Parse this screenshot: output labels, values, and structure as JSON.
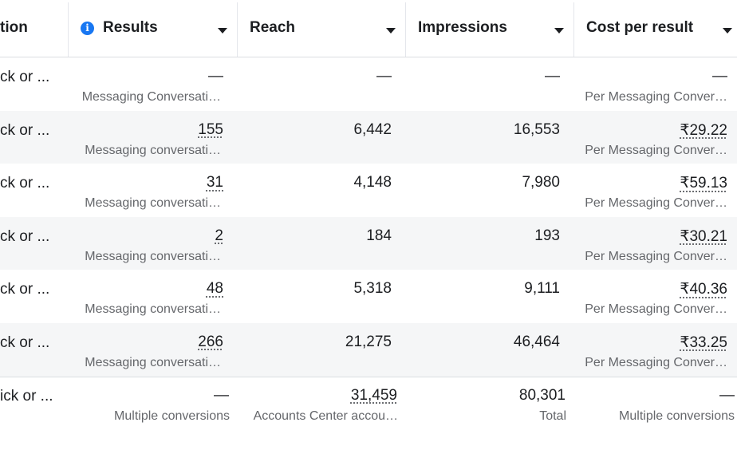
{
  "table": {
    "header": [
      "tion",
      "Results",
      "Reach",
      "Impressions",
      "Cost per result"
    ],
    "rows": [
      [
        "ck or ...",
        {
          "value": "—",
          "sub": "Messaging Conversati…"
        },
        {
          "value": "—"
        },
        {
          "value": "—"
        },
        {
          "value": "—",
          "sub": "Per Messaging Conver…"
        }
      ],
      [
        "ck or ...",
        {
          "value": "155",
          "sub": "Messaging conversati…"
        },
        {
          "value": "6,442"
        },
        {
          "value": "16,553"
        },
        {
          "value": "₹29.22",
          "sub": "Per Messaging Conver…"
        }
      ],
      [
        "ck or ...",
        {
          "value": "31",
          "sub": "Messaging conversati…"
        },
        {
          "value": "4,148"
        },
        {
          "value": "7,980"
        },
        {
          "value": "₹59.13",
          "sub": "Per Messaging Conver…"
        }
      ],
      [
        "ck or ...",
        {
          "value": "2",
          "sub": "Messaging conversati…"
        },
        {
          "value": "184"
        },
        {
          "value": "193"
        },
        {
          "value": "₹30.21",
          "sub": "Per Messaging Conver…"
        }
      ],
      [
        "ck or ...",
        {
          "value": "48",
          "sub": "Messaging conversati…"
        },
        {
          "value": "5,318"
        },
        {
          "value": "9,111"
        },
        {
          "value": "₹40.36",
          "sub": "Per Messaging Conver…"
        }
      ],
      [
        "ck or ...",
        {
          "value": "266",
          "sub": "Messaging conversati…"
        },
        {
          "value": "21,275"
        },
        {
          "value": "46,464"
        },
        {
          "value": "₹33.25",
          "sub": "Per Messaging Conver…"
        }
      ]
    ],
    "total": [
      "ick or ...",
      {
        "value": "—",
        "sub": "Multiple conversions"
      },
      {
        "value": "31,459",
        "sub": "Accounts Center accou…"
      },
      {
        "value": "80,301",
        "sub": "Total"
      },
      {
        "value": "—",
        "sub": "Multiple conversions"
      }
    ]
  }
}
